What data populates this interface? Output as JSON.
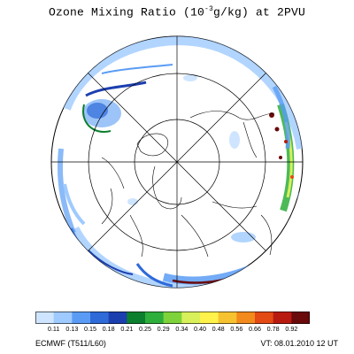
{
  "title": {
    "prefix": "Ozone Mixing Ratio  (10",
    "exponent": "-3",
    "suffix": "g/kg) at 2PVU"
  },
  "colorbar": {
    "labels": [
      "0.11",
      "0.13",
      "0.15",
      "0.18",
      "0.21",
      "0.25",
      "0.29",
      "0.34",
      "0.40",
      "0.48",
      "0.56",
      "0.66",
      "0.78",
      "0.92"
    ],
    "colors": [
      "#cfe5ff",
      "#9fcaff",
      "#5a9cf5",
      "#2e6ad8",
      "#1c3fb0",
      "#0c7f2e",
      "#2eae3a",
      "#7fd33a",
      "#d8f05a",
      "#fff24a",
      "#f6c230",
      "#f28a1c",
      "#e34a14",
      "#b81a10",
      "#6a0a0a"
    ]
  },
  "footer": {
    "model": "ECMWF (T511/L60)",
    "valid_time": "VT: 08.01.2010 12 UT"
  },
  "map": {
    "projection": "polar stereographic, North Pole",
    "background_color": "#ffffff",
    "coastline_color": "#000000",
    "gridline_color": "#000000"
  }
}
